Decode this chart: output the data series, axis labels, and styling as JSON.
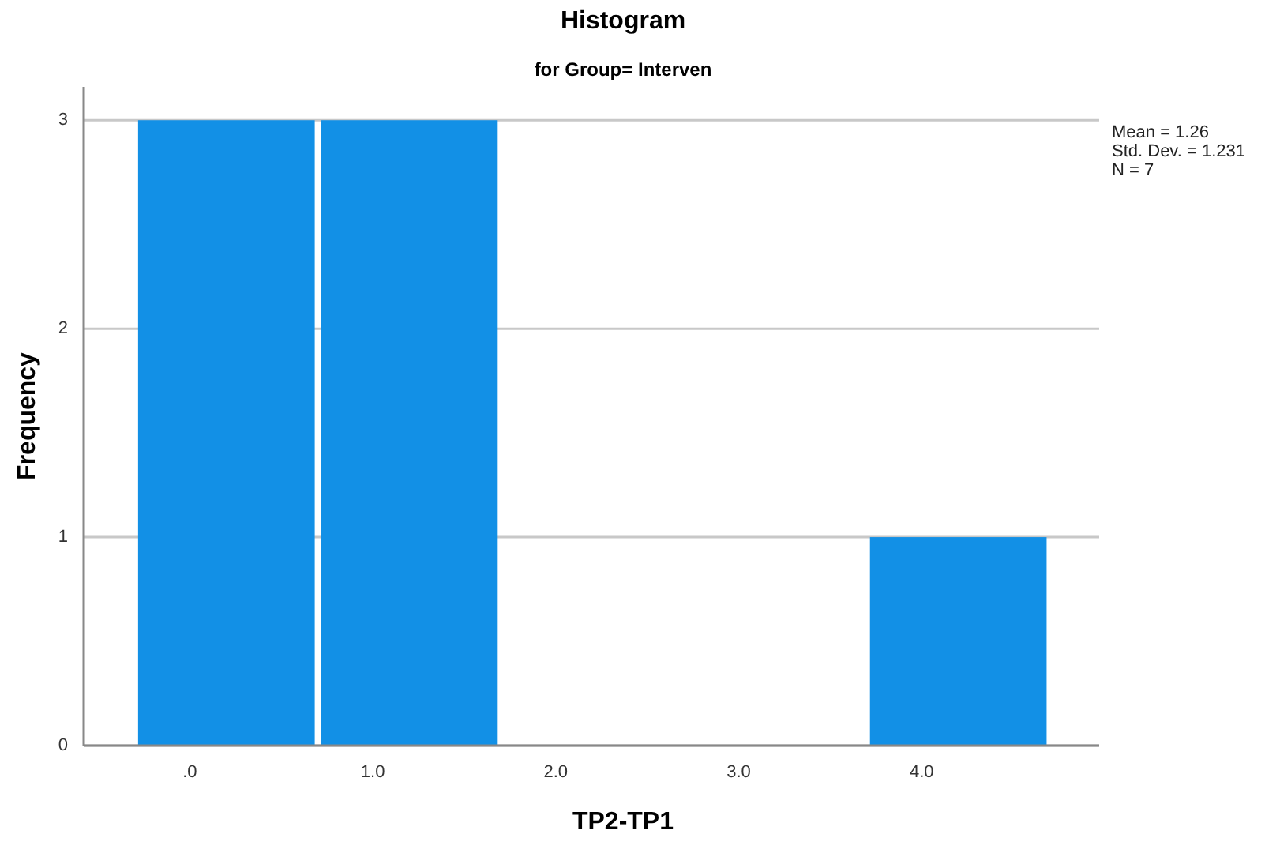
{
  "chart_data": {
    "type": "histogram",
    "title": "Histogram",
    "subtitle": "for Group= Interven",
    "xlabel": "TP2-TP1",
    "ylabel": "Frequency",
    "bins": [
      -0.3,
      0.7,
      1.7,
      2.7,
      3.7,
      4.7
    ],
    "values": [
      3,
      3,
      0,
      0,
      1
    ],
    "color": "#1290e6",
    "xlim": [
      -0.58,
      4.97
    ],
    "xticks": [
      {
        "value": 0,
        "label": ".0"
      },
      {
        "value": 1,
        "label": "1.0"
      },
      {
        "value": 2,
        "label": "2.0"
      },
      {
        "value": 3,
        "label": "3.0"
      },
      {
        "value": 4,
        "label": "4.0"
      }
    ],
    "ylim": [
      0,
      3.16
    ],
    "yticks": [
      0,
      1,
      2,
      3
    ],
    "grid": "y",
    "annotations": [
      "Mean = 1.26",
      "Std. Dev. = 1.231",
      "N = 7"
    ]
  }
}
